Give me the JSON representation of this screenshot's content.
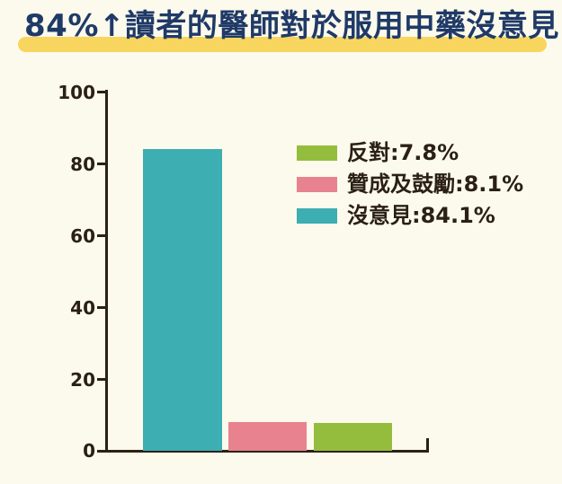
{
  "title": {
    "text": "84%↑讀者的醫師對於服用中藥沒意見"
  },
  "colors": {
    "background": "#FCFAEC",
    "title_text": "#1F3A68",
    "title_highlight": "#F8D55E",
    "axis": "#2B2014",
    "tick_label_text": "#2B2014",
    "legend_text": "#2B2014"
  },
  "axis": {
    "tick_labels": [
      "100",
      "80",
      "60",
      "40",
      "20",
      "0"
    ]
  },
  "chart_data": {
    "type": "bar",
    "title": "84%↑讀者的醫師對於服用中藥沒意見",
    "categories": [
      "沒意見",
      "贊成及鼓勵",
      "反對"
    ],
    "values": [
      84.1,
      8.1,
      7.8
    ],
    "colors": [
      "#3DAEB2",
      "#E8828F",
      "#95BD3D"
    ],
    "xlabel": "",
    "ylabel": "",
    "ylim": [
      0,
      100
    ],
    "yticks": [
      0,
      20,
      40,
      60,
      80,
      100
    ],
    "grid": false,
    "legend_position": "inside-upper-right",
    "legend": [
      {
        "label": "反對:7.8%",
        "color": "#95BD3D"
      },
      {
        "label": "贊成及鼓勵:8.1%",
        "color": "#E8828F"
      },
      {
        "label": "沒意見:84.1%",
        "color": "#3DAEB2"
      }
    ]
  }
}
